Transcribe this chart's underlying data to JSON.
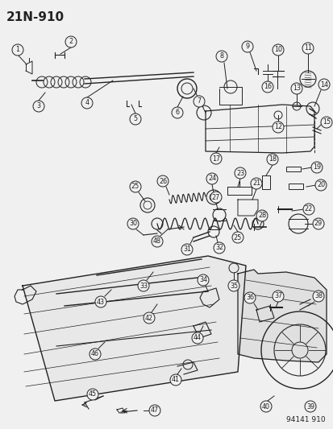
{
  "title": "21N-910",
  "footer": "94141 910",
  "bg_color": "#f0f0f0",
  "title_fontsize": 11,
  "footer_fontsize": 6.5
}
